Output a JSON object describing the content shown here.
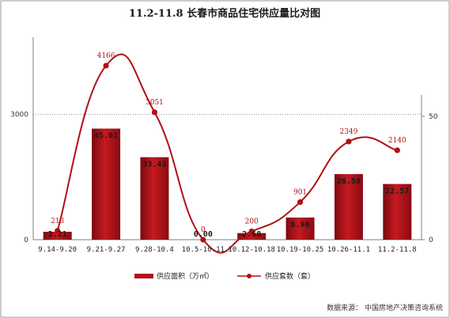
{
  "chart_data": {
    "type": "bar+line",
    "title": "11.2-11.8 长春市商品住宅供应量比对图",
    "categories": [
      "9.14-9.20",
      "9.21-9.27",
      "9.28-10.4",
      "10.5-10.11",
      "10.12-10.18",
      "10.19-10.25",
      "10.26-11.1",
      "11.2-11.8"
    ],
    "series": [
      {
        "name": "供应面积（万㎡）",
        "type": "bar",
        "axis": "right",
        "values": [
          3.21,
          45.01,
          33.43,
          0.0,
          2.68,
          8.96,
          26.58,
          22.57
        ],
        "labels": [
          "3.21",
          "45.01",
          "33.43",
          "0.00",
          "2.68",
          "8.96",
          "26.58",
          "22.57"
        ]
      },
      {
        "name": "供应套数（套）",
        "type": "line",
        "axis": "left",
        "values": [
          213,
          4166,
          3051,
          0,
          200,
          901,
          2349,
          2140
        ],
        "labels": [
          "213",
          "4166",
          "3051",
          "0",
          "200",
          "901",
          "2349",
          "2140"
        ]
      }
    ],
    "left_axis": {
      "ticks": [
        "0",
        "3000"
      ],
      "range": [
        0,
        4848
      ]
    },
    "right_axis": {
      "ticks": [
        "0",
        "50"
      ],
      "range": [
        0,
        50
      ]
    },
    "grid": "dotted line at 3000",
    "legend_position": "bottom",
    "colors": {
      "bar": "#b3131a",
      "line": "#b01015"
    }
  },
  "source": "数据来源：  中国房地产决策咨询系统"
}
